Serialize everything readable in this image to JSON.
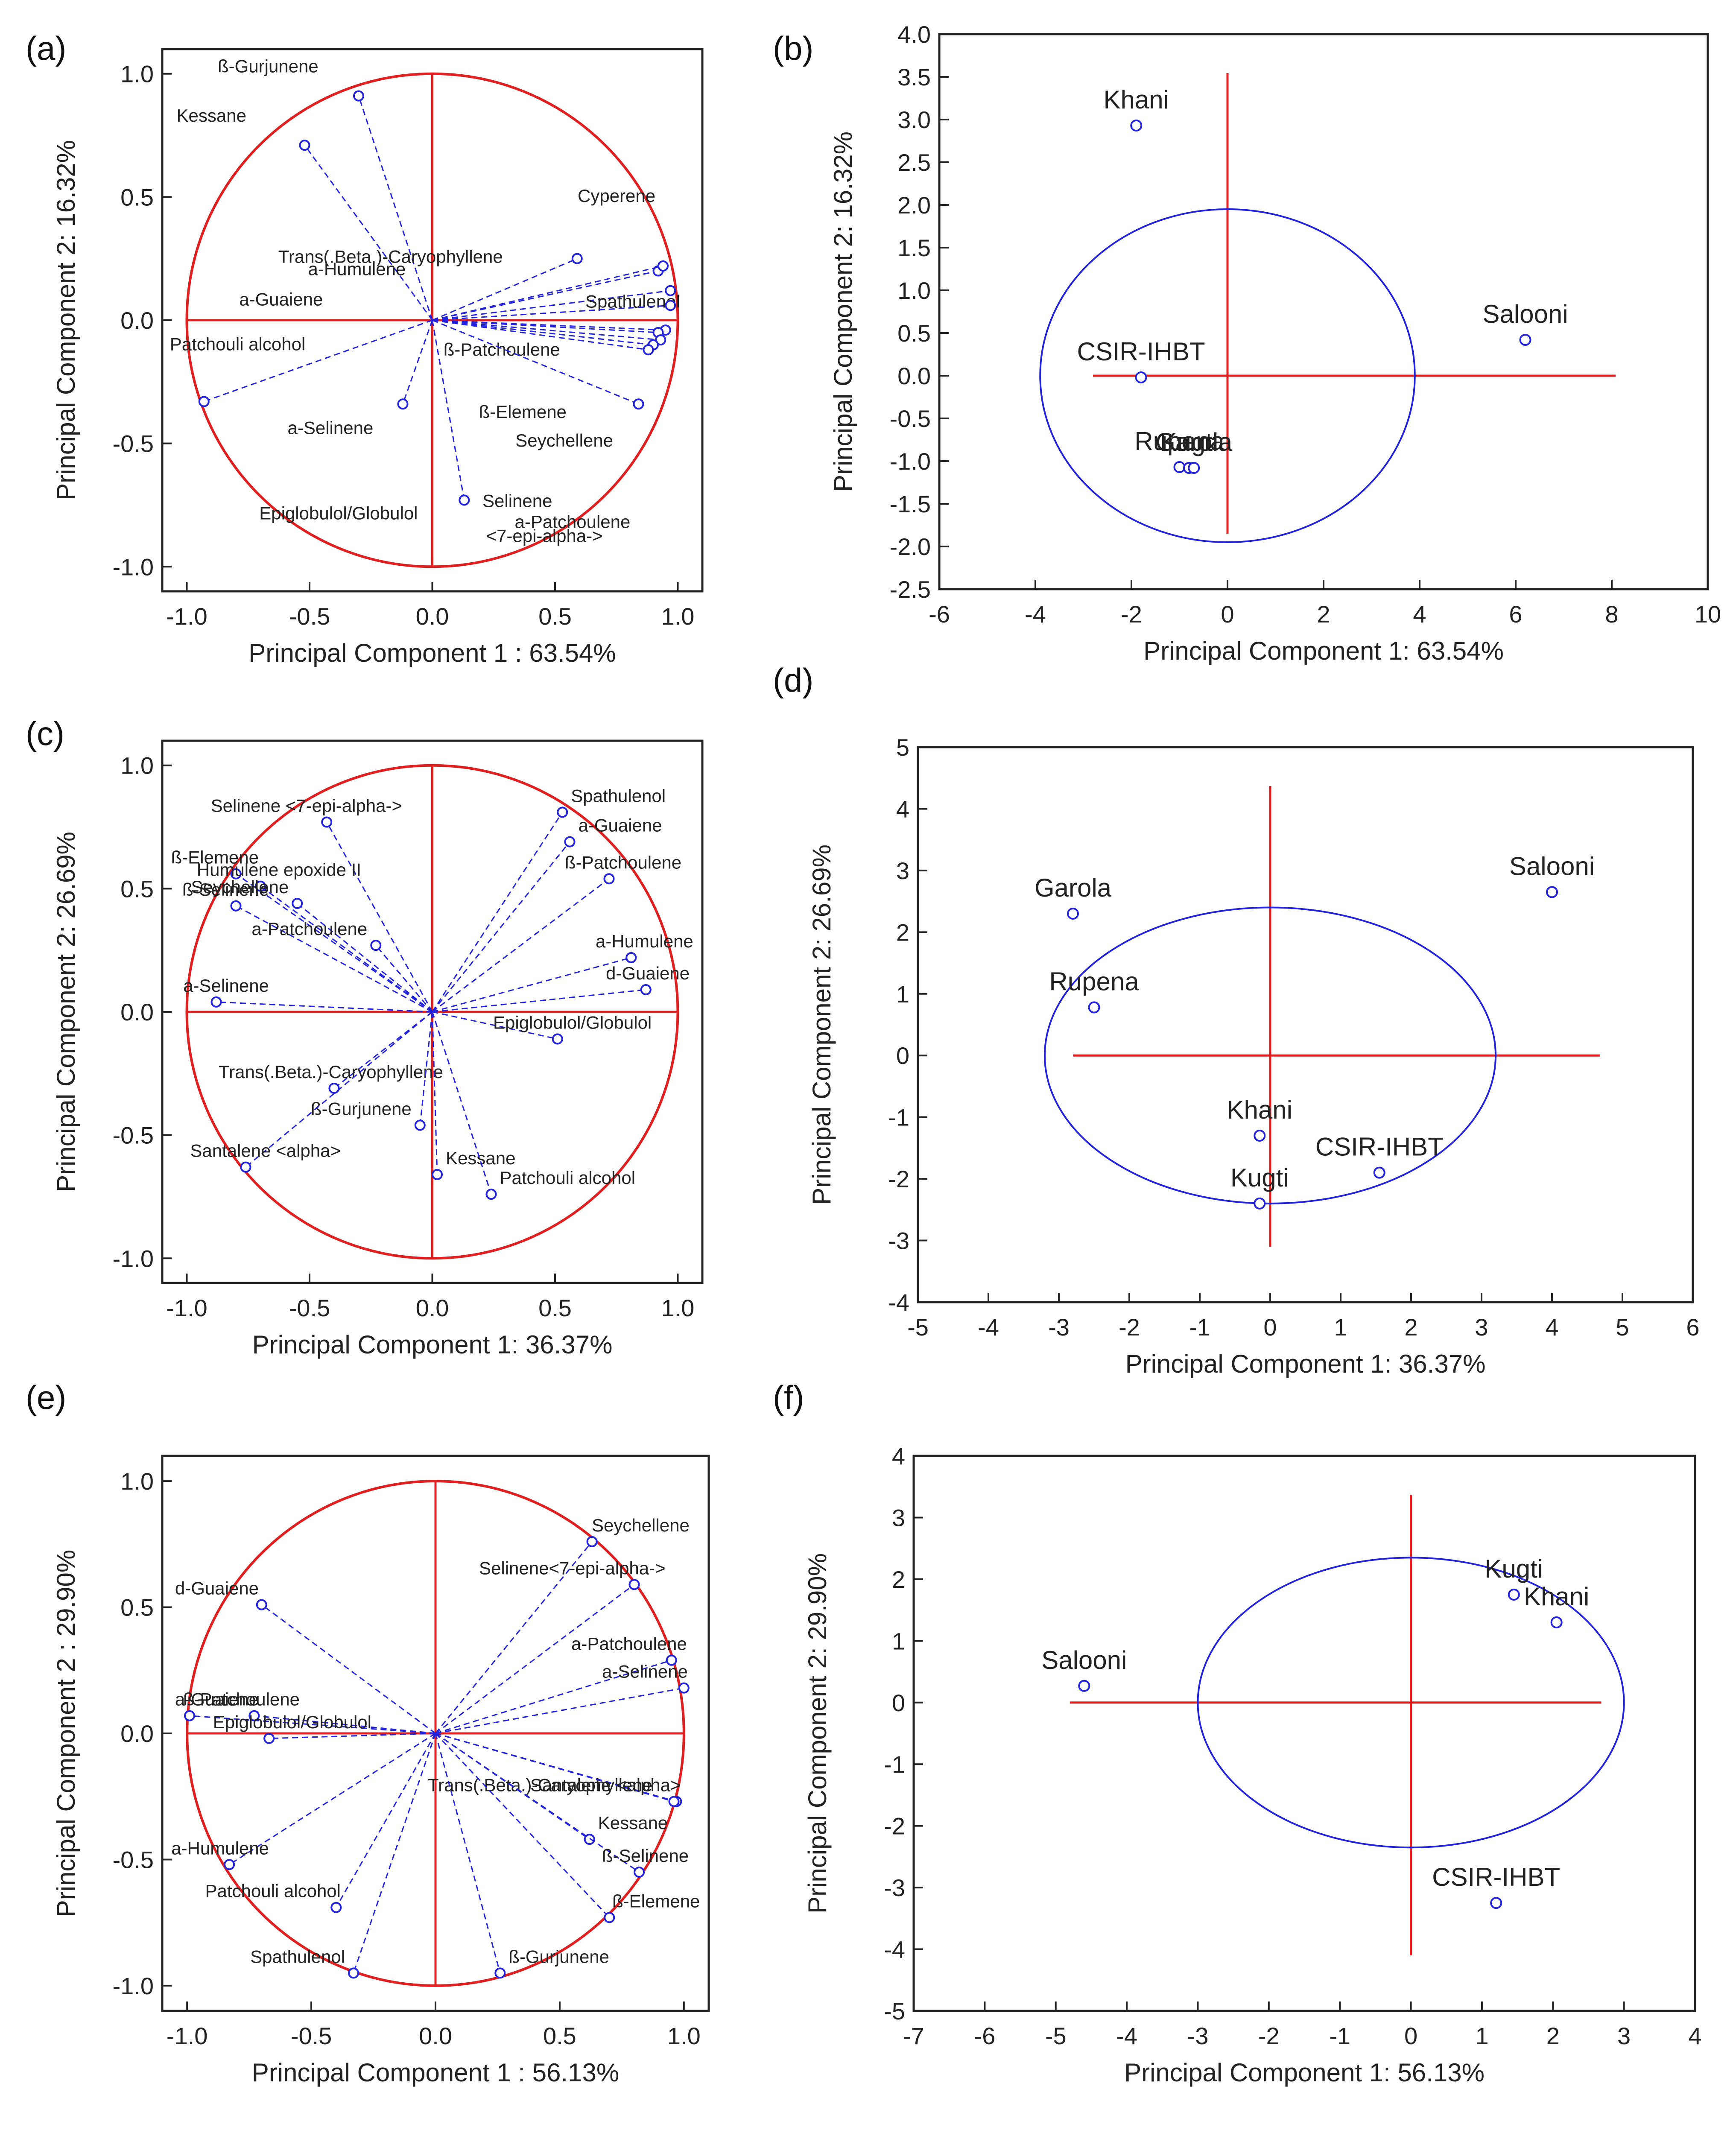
{
  "chart_data": [
    {
      "id": "a",
      "panel_label": "(a)",
      "type": "scatter",
      "subtype": "loading-plot",
      "xlabel": "Principal Component 1 : 63.54%",
      "ylabel": "Principal Component 2: 16.32%",
      "xlim": [
        -1.1,
        1.1
      ],
      "ylim": [
        -1.1,
        1.1
      ],
      "xticks": [
        "-1.0",
        "-0.5",
        "0.0",
        "0.5",
        "1.0"
      ],
      "yticks": [
        "-1.0",
        "-0.5",
        "0.0",
        "0.5",
        "1.0"
      ],
      "circle": {
        "cx": 0,
        "cy": 0,
        "r": 1
      },
      "points": [
        {
          "label": "ß-Gurjunene",
          "x": -0.3,
          "y": 0.91
        },
        {
          "label": "Kessane",
          "x": -0.52,
          "y": 0.71
        },
        {
          "label": "Trans(.Beta.)-Caryophyllene",
          "x": 0.59,
          "y": 0.25
        },
        {
          "label": "a-Humulene",
          "x": 0.92,
          "y": 0.2
        },
        {
          "label": "Spathulenol",
          "x": 0.97,
          "y": 0.12
        },
        {
          "label": "Cyperene",
          "x": 0.94,
          "y": 0.22
        },
        {
          "label": "a-Guaiene",
          "x": 0.97,
          "y": 0.06
        },
        {
          "label": "ß-Patchoulene",
          "x": 0.95,
          "y": -0.04
        },
        {
          "label": "Patchouli alcohol",
          "x": -0.93,
          "y": -0.33
        },
        {
          "label": "a-Selinene",
          "x": -0.12,
          "y": -0.34
        },
        {
          "label": "Epiglobulol/Globulol",
          "x": 0.13,
          "y": -0.73
        },
        {
          "label": "ß-Elemene",
          "x": 0.92,
          "y": -0.05
        },
        {
          "label": "Seychellene",
          "x": 0.93,
          "y": -0.08
        },
        {
          "label": "a-Patchoulene",
          "x": 0.84,
          "y": -0.34
        },
        {
          "label": "Selinene",
          "x": 0.9,
          "y": -0.1
        },
        {
          "label": "<7-epi-alpha->",
          "x": 0.88,
          "y": -0.12
        }
      ]
    },
    {
      "id": "b",
      "panel_label": "(b)",
      "type": "scatter",
      "subtype": "score-plot",
      "xlabel": "Principal Component 1: 63.54%",
      "ylabel": "Principal Component  2: 16.32%",
      "xlim": [
        -6,
        10
      ],
      "ylim": [
        -2.5,
        4.0
      ],
      "xticks": [
        "-6",
        "-4",
        "-2",
        "0",
        "2",
        "4",
        "6",
        "8",
        "10"
      ],
      "yticks": [
        "-2.5",
        "-2.0",
        "-1.5",
        "-1.0",
        "-0.5",
        "0.0",
        "0.5",
        "1.0",
        "1.5",
        "2.0",
        "2.5",
        "3.0",
        "3.5",
        "4.0"
      ],
      "ellipse": {
        "cx": 0,
        "cy": 0,
        "rx": 3.9,
        "ry": 1.95
      },
      "points": [
        {
          "label": "Khani",
          "x": -1.9,
          "y": 2.93
        },
        {
          "label": "Salooni",
          "x": 6.2,
          "y": 0.42
        },
        {
          "label": "CSIR-IHBT",
          "x": -1.8,
          "y": -0.02
        },
        {
          "label": "Rupena",
          "x": -1.0,
          "y": -1.07
        },
        {
          "label": "Kugti",
          "x": -0.8,
          "y": -1.08
        },
        {
          "label": "Garola",
          "x": -0.7,
          "y": -1.08
        }
      ]
    },
    {
      "id": "c",
      "panel_label": "(c)",
      "type": "scatter",
      "subtype": "loading-plot",
      "xlabel": "Principal Component 1: 36.37%",
      "ylabel": "Principal Component 2: 26.69%",
      "xlim": [
        -1.1,
        1.1
      ],
      "ylim": [
        -1.1,
        1.1
      ],
      "xticks": [
        "-1.0",
        "-0.5",
        "0.0",
        "0.5",
        "1.0"
      ],
      "yticks": [
        "-1.0",
        "-0.5",
        "0.0",
        "0.5",
        "1.0"
      ],
      "circle": {
        "cx": 0,
        "cy": 0,
        "r": 1
      },
      "points": [
        {
          "label": "Selinene <7-epi-alpha->",
          "x": -0.43,
          "y": 0.77
        },
        {
          "label": "Spathulenol",
          "x": 0.53,
          "y": 0.81
        },
        {
          "label": "ß-Elemene",
          "x": -0.8,
          "y": 0.56
        },
        {
          "label": "a-Guaiene",
          "x": 0.56,
          "y": 0.69
        },
        {
          "label": "Humulene epoxide II",
          "x": -0.7,
          "y": 0.51
        },
        {
          "label": "Seychellene",
          "x": -0.55,
          "y": 0.44
        },
        {
          "label": "ß-Patchoulene",
          "x": 0.72,
          "y": 0.54
        },
        {
          "label": "ß-Selinene",
          "x": -0.8,
          "y": 0.43
        },
        {
          "label": "a-Patchoulene",
          "x": -0.23,
          "y": 0.27
        },
        {
          "label": "a-Humulene",
          "x": 0.81,
          "y": 0.22
        },
        {
          "label": "d-Guaiene",
          "x": 0.87,
          "y": 0.09
        },
        {
          "label": "a-Selinene",
          "x": -0.88,
          "y": 0.04
        },
        {
          "label": "Epiglobulol/Globulol",
          "x": 0.51,
          "y": -0.11
        },
        {
          "label": "Trans(.Beta.)-Caryophyllene",
          "x": -0.4,
          "y": -0.31
        },
        {
          "label": "ß-Gurjunene",
          "x": -0.05,
          "y": -0.46
        },
        {
          "label": "Kessane",
          "x": 0.02,
          "y": -0.66
        },
        {
          "label": "Santalene <alpha>",
          "x": -0.76,
          "y": -0.63
        },
        {
          "label": "Patchouli alcohol",
          "x": 0.24,
          "y": -0.74
        }
      ]
    },
    {
      "id": "d",
      "panel_label": "(d)",
      "type": "scatter",
      "subtype": "score-plot",
      "xlabel": "Principal Component 1: 36.37%",
      "ylabel": "Principal Component 2: 26.69%",
      "xlim": [
        -5,
        6
      ],
      "ylim": [
        -4,
        5
      ],
      "xticks": [
        "-5",
        "-4",
        "-3",
        "-2",
        "-1",
        "0",
        "1",
        "2",
        "3",
        "4",
        "5",
        "6"
      ],
      "yticks": [
        "-4",
        "-3",
        "-2",
        "-1",
        "0",
        "1",
        "2",
        "3",
        "4",
        "5"
      ],
      "ellipse": {
        "cx": 0,
        "cy": 0,
        "rx": 3.2,
        "ry": 2.4
      },
      "points": [
        {
          "label": "Salooni",
          "x": 4.0,
          "y": 2.65
        },
        {
          "label": "Garola",
          "x": -2.8,
          "y": 2.3
        },
        {
          "label": "Rupena",
          "x": -2.5,
          "y": 0.78
        },
        {
          "label": "Khani",
          "x": -0.15,
          "y": -1.3
        },
        {
          "label": "CSIR-IHBT",
          "x": 1.55,
          "y": -1.9
        },
        {
          "label": "Kugti",
          "x": -0.15,
          "y": -2.4
        }
      ]
    },
    {
      "id": "e",
      "panel_label": "(e)",
      "type": "scatter",
      "subtype": "loading-plot",
      "xlabel": "Principal Component 1 : 56.13%",
      "ylabel": "Principal Component  2 : 29.90%",
      "xlim": [
        -1.1,
        1.1
      ],
      "ylim": [
        -1.1,
        1.1
      ],
      "xticks": [
        "-1.0",
        "-0.5",
        "0.0",
        "0.5",
        "1.0"
      ],
      "yticks": [
        "-1.0",
        "-0.5",
        "0.0",
        "0.5",
        "1.0"
      ],
      "circle": {
        "cx": 0,
        "cy": 0,
        "r": 1
      },
      "points": [
        {
          "label": "Seychellene",
          "x": 0.63,
          "y": 0.76
        },
        {
          "label": "Selinene<7-epi-alpha->",
          "x": 0.8,
          "y": 0.59
        },
        {
          "label": "d-Guaiene",
          "x": -0.7,
          "y": 0.51
        },
        {
          "label": "a-Patchoulene",
          "x": 0.95,
          "y": 0.29
        },
        {
          "label": "ß-Patchoulene",
          "x": -0.99,
          "y": 0.07
        },
        {
          "label": "a-Guaiene",
          "x": -0.73,
          "y": 0.07
        },
        {
          "label": "a-Selinene",
          "x": 1.0,
          "y": 0.18
        },
        {
          "label": "Epiglobulol/Globulol",
          "x": -0.67,
          "y": -0.02
        },
        {
          "label": "Trans(.Beta.)-Caryophyllene",
          "x": 0.97,
          "y": -0.27
        },
        {
          "label": "Santalene <alpha>",
          "x": 0.96,
          "y": -0.27
        },
        {
          "label": "Kessane",
          "x": 0.62,
          "y": -0.42
        },
        {
          "label": "ß-Selinene",
          "x": 0.82,
          "y": -0.55
        },
        {
          "label": "a-Humulene",
          "x": -0.83,
          "y": -0.52
        },
        {
          "label": "ß-Elemene",
          "x": 0.7,
          "y": -0.73
        },
        {
          "label": "Patchouli alcohol",
          "x": -0.4,
          "y": -0.69
        },
        {
          "label": "Spathulenol",
          "x": -0.33,
          "y": -0.95
        },
        {
          "label": "ß-Gurjunene",
          "x": 0.26,
          "y": -0.95
        }
      ]
    },
    {
      "id": "f",
      "panel_label": "(f)",
      "type": "scatter",
      "subtype": "score-plot",
      "xlabel": "Principal Component 1: 56.13%",
      "ylabel": "Principal Component  2: 29.90%",
      "xlim": [
        -7,
        4
      ],
      "ylim": [
        -5,
        4
      ],
      "xticks": [
        "-7",
        "-6",
        "-5",
        "-4",
        "-3",
        "-2",
        "-1",
        "0",
        "1",
        "2",
        "3",
        "4"
      ],
      "yticks": [
        "-5",
        "-4",
        "-3",
        "-2",
        "-1",
        "0",
        "1",
        "2",
        "3",
        "4"
      ],
      "ellipse": {
        "cx": 0,
        "cy": 0,
        "rx": 3.0,
        "ry": 2.35
      },
      "points": [
        {
          "label": "Kugti",
          "x": 1.45,
          "y": 1.75
        },
        {
          "label": "Khani",
          "x": 2.05,
          "y": 1.3
        },
        {
          "label": "Salooni",
          "x": -4.6,
          "y": 0.27
        },
        {
          "label": "CSIR-IHBT",
          "x": 1.2,
          "y": -3.25
        }
      ]
    }
  ]
}
